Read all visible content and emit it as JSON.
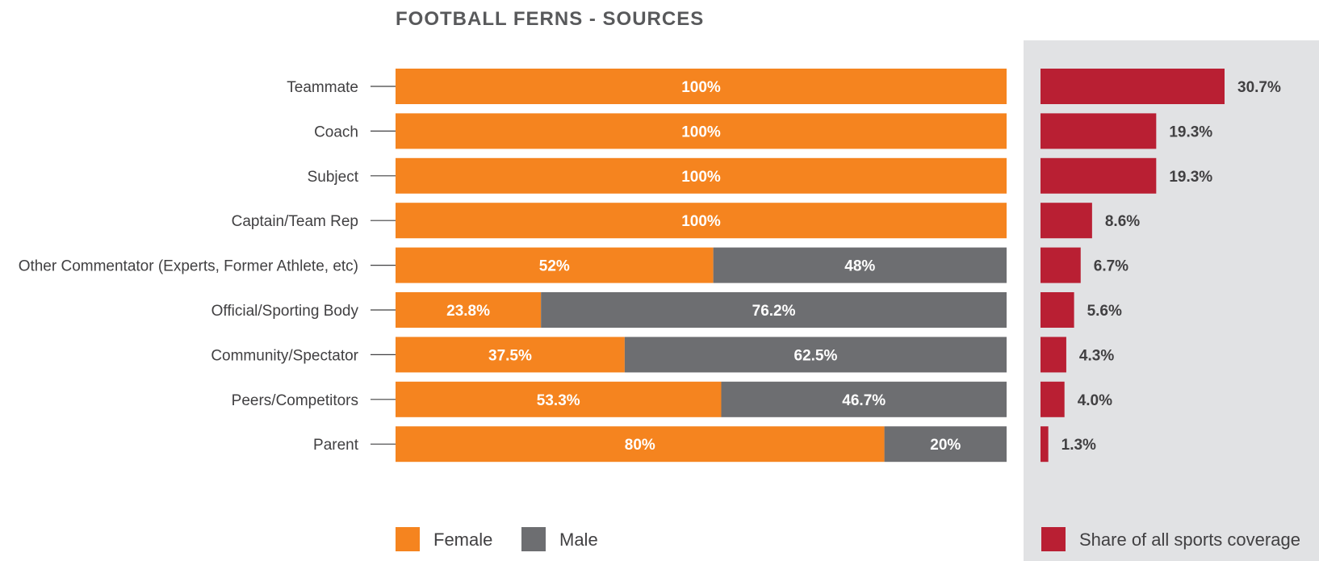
{
  "colors": {
    "female": "#f5841f",
    "male": "#6d6e71",
    "share": "#b91f33",
    "panel_bg": "#e1e2e4",
    "text": "#414042",
    "title": "#58595b",
    "bar_label": "#ffffff"
  },
  "chart_data": [
    {
      "type": "bar",
      "orientation": "horizontal",
      "stacked": true,
      "title": "FOOTBALL FERNS - SOURCES",
      "categories": [
        "Teammate",
        "Coach",
        "Subject",
        "Captain/Team Rep",
        "Other Commentator (Experts, Former Athlete, etc)",
        "Official/Sporting Body",
        "Community/Spectator",
        "Peers/Competitors",
        "Parent"
      ],
      "series": [
        {
          "name": "Female",
          "values": [
            100,
            100,
            100,
            100,
            52,
            23.8,
            37.5,
            53.3,
            80
          ],
          "labels": [
            "100%",
            "100%",
            "100%",
            "100%",
            "52%",
            "23.8%",
            "37.5%",
            "53.3%",
            "80%"
          ]
        },
        {
          "name": "Male",
          "values": [
            0,
            0,
            0,
            0,
            48,
            76.2,
            62.5,
            46.7,
            20
          ],
          "labels": [
            "",
            "",
            "",
            "",
            "48%",
            "76.2%",
            "62.5%",
            "46.7%",
            "20%"
          ]
        }
      ],
      "xlim": [
        0,
        100
      ],
      "grid": false,
      "legend_placement": "bottom"
    },
    {
      "type": "bar",
      "orientation": "horizontal",
      "categories": [
        "Teammate",
        "Coach",
        "Subject",
        "Captain/Team Rep",
        "Other Commentator (Experts, Former Athlete, etc)",
        "Official/Sporting Body",
        "Community/Spectator",
        "Peers/Competitors",
        "Parent"
      ],
      "series": [
        {
          "name": "Share of all sports coverage",
          "values": [
            30.7,
            19.3,
            19.3,
            8.6,
            6.7,
            5.6,
            4.3,
            4.0,
            1.3
          ],
          "labels": [
            "30.7%",
            "19.3%",
            "19.3%",
            "8.6%",
            "6.7%",
            "5.6%",
            "4.3%",
            "4.0%",
            "1.3%"
          ]
        }
      ],
      "xlim": [
        0,
        30.7
      ],
      "grid": false,
      "legend_placement": "bottom"
    }
  ]
}
